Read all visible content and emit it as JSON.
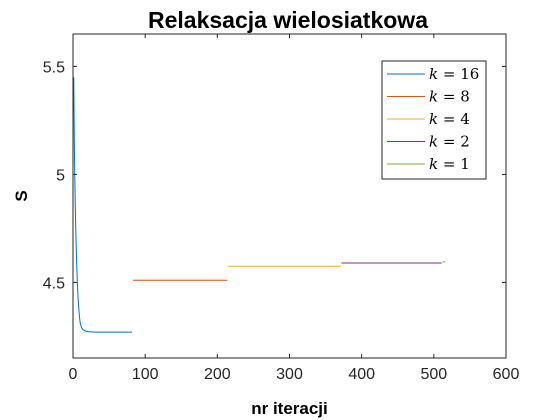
{
  "chart_data": {
    "type": "line",
    "title": "Relaksacja wielosiatkowa",
    "xlabel": "nr iteracji",
    "ylabel": "S",
    "xlim": [
      0,
      600
    ],
    "ylim": [
      4.15,
      5.65
    ],
    "xticks": [
      0,
      100,
      200,
      300,
      400,
      500,
      600
    ],
    "yticks": [
      4.5,
      5,
      5.5
    ],
    "ytick_labels": [
      "4.5",
      "5",
      "5.5"
    ],
    "grid": false,
    "legend_position": "top-right",
    "series": [
      {
        "name": "k = 16",
        "legend_var": "k",
        "legend_op": "=",
        "legend_val": "16",
        "color": "#0072BD",
        "x": [
          1,
          2,
          3,
          4,
          5,
          6,
          7,
          8,
          9,
          10,
          12,
          14,
          17,
          20,
          25,
          30,
          40,
          50,
          60,
          70,
          82
        ],
        "y": [
          5.45,
          5.1,
          4.88,
          4.72,
          4.6,
          4.5,
          4.43,
          4.38,
          4.34,
          4.31,
          4.29,
          4.28,
          4.275,
          4.272,
          4.271,
          4.27,
          4.27,
          4.27,
          4.27,
          4.27,
          4.27
        ]
      },
      {
        "name": "k = 8",
        "legend_var": "k",
        "legend_op": "=",
        "legend_val": "8",
        "color": "#D95319",
        "x": [
          83,
          214
        ],
        "y": [
          4.51,
          4.51
        ]
      },
      {
        "name": "k = 4",
        "legend_var": "k",
        "legend_op": "=",
        "legend_val": "4",
        "color": "#EDB120",
        "x": [
          215,
          371
        ],
        "y": [
          4.575,
          4.575
        ]
      },
      {
        "name": "k = 2",
        "legend_var": "k",
        "legend_op": "=",
        "legend_val": "2",
        "color": "#7E2F8E",
        "x": [
          372,
          511
        ],
        "y": [
          4.59,
          4.59
        ]
      },
      {
        "name": "k = 1",
        "legend_var": "k",
        "legend_op": "=",
        "legend_val": "1",
        "color": "#77AC30",
        "x": [
          512,
          516
        ],
        "y": [
          4.595,
          4.595
        ]
      }
    ]
  }
}
